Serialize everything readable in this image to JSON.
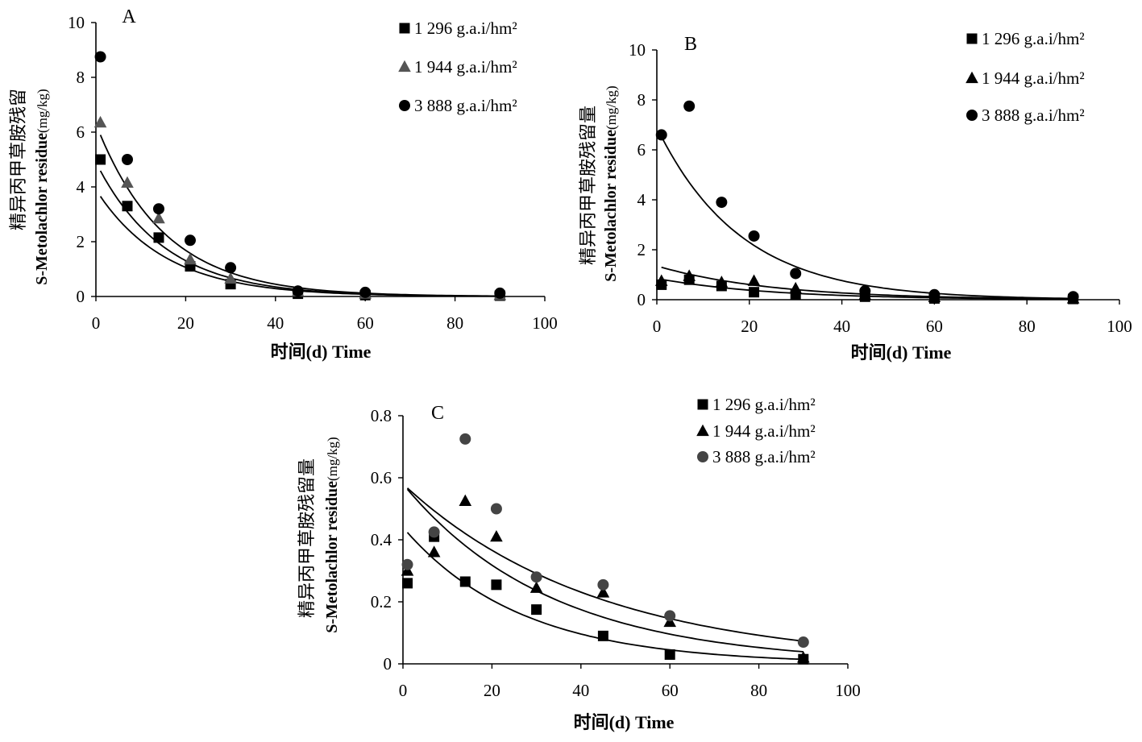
{
  "chart_data": [
    {
      "type": "scatter",
      "panel_label": "A",
      "xlabel": "时间(d) Time",
      "ylabel_cn": "精异丙甲草胺残留",
      "ylabel_en": "S-Metolachlor residue",
      "ylabel_unit": "(mg/kg)",
      "xlim": [
        0,
        100
      ],
      "ylim": [
        0,
        10
      ],
      "xticks": [
        "0",
        "20",
        "40",
        "60",
        "80",
        "100"
      ],
      "yticks": [
        "0",
        "2",
        "4",
        "6",
        "8",
        "10"
      ],
      "legend_position": "top-right",
      "series": [
        {
          "name": "1 296 g.a.i/hm²",
          "marker": "square",
          "color": "#000000",
          "x": [
            1,
            7,
            14,
            21,
            30,
            45,
            60,
            90
          ],
          "y": [
            5.0,
            3.3,
            2.15,
            1.1,
            0.45,
            0.1,
            0.05,
            0.03
          ],
          "fit": {
            "c0": 3.9,
            "k": 0.065
          }
        },
        {
          "name": "1 944 g.a.i/hm²",
          "marker": "triangle",
          "color": "#555555",
          "x": [
            1,
            7,
            14,
            21,
            30,
            45,
            60,
            90
          ],
          "y": [
            6.35,
            4.15,
            2.85,
            1.35,
            0.65,
            0.18,
            0.1,
            0.05
          ],
          "fit": {
            "c0": 4.9,
            "k": 0.066
          }
        },
        {
          "name": "3 888 g.a.i/hm²",
          "marker": "circle",
          "color": "#000000",
          "x": [
            1,
            7,
            14,
            21,
            30,
            45,
            60,
            90
          ],
          "y": [
            8.75,
            5.0,
            3.2,
            2.05,
            1.05,
            0.2,
            0.15,
            0.12
          ],
          "fit": {
            "c0": 6.3,
            "k": 0.066
          }
        }
      ]
    },
    {
      "type": "scatter",
      "panel_label": "B",
      "xlabel": "时间(d) Time",
      "ylabel_cn": "精异丙甲草胺残留量",
      "ylabel_en": "S-Metolachlor residue",
      "ylabel_unit": "(mg/kg)",
      "xlim": [
        0,
        100
      ],
      "ylim": [
        0,
        10
      ],
      "xticks": [
        "0",
        "20",
        "40",
        "60",
        "80",
        "100"
      ],
      "yticks": [
        "0",
        "2",
        "4",
        "6",
        "8",
        "10"
      ],
      "legend_position": "top-right",
      "series": [
        {
          "name": "1 296 g.a.i/hm²",
          "marker": "square",
          "color": "#000000",
          "x": [
            1,
            7,
            14,
            21,
            30,
            45,
            60,
            90
          ],
          "y": [
            0.6,
            0.8,
            0.55,
            0.3,
            0.2,
            0.12,
            0.05,
            0.03
          ],
          "fit": {
            "c0": 0.85,
            "k": 0.04
          }
        },
        {
          "name": "1 944 g.a.i/hm²",
          "marker": "triangle",
          "color": "#000000",
          "x": [
            1,
            7,
            14,
            21,
            30,
            45,
            60,
            90
          ],
          "y": [
            0.75,
            0.95,
            0.7,
            0.75,
            0.45,
            0.2,
            0.1,
            0.05
          ],
          "fit": {
            "c0": 1.35,
            "k": 0.04
          }
        },
        {
          "name": "3 888 g.a.i/hm²",
          "marker": "circle",
          "color": "#000000",
          "x": [
            1,
            7,
            14,
            21,
            30,
            45,
            60,
            90
          ],
          "y": [
            6.6,
            7.75,
            3.9,
            2.55,
            1.05,
            0.35,
            0.2,
            0.12
          ],
          "fit": {
            "c0": 6.9,
            "k": 0.055
          }
        }
      ]
    },
    {
      "type": "scatter",
      "panel_label": "C",
      "xlabel": "时间(d) Time",
      "ylabel_cn": "精异丙甲草胺残留量",
      "ylabel_en": "S-Metolachlor residue",
      "ylabel_unit": "(mg/kg)",
      "xlim": [
        0,
        100
      ],
      "ylim": [
        0,
        0.8
      ],
      "xticks": [
        "0",
        "20",
        "40",
        "60",
        "80",
        "100"
      ],
      "yticks": [
        "0",
        "0.2",
        "0.4",
        "0.6",
        "0.8"
      ],
      "legend_position": "top-right",
      "series": [
        {
          "name": "1 296 g.a.i/hm²",
          "marker": "square",
          "color": "#000000",
          "x": [
            1,
            7,
            14,
            21,
            30,
            45,
            60,
            90
          ],
          "y": [
            0.26,
            0.41,
            0.265,
            0.255,
            0.175,
            0.09,
            0.03,
            0.015
          ],
          "fit": {
            "c0": 0.44,
            "k": 0.038
          }
        },
        {
          "name": "1 944 g.a.i/hm²",
          "marker": "triangle",
          "color": "#000000",
          "x": [
            1,
            7,
            14,
            21,
            30,
            45,
            60,
            90
          ],
          "y": [
            0.3,
            0.36,
            0.525,
            0.41,
            0.245,
            0.23,
            0.135,
            0.02
          ],
          "fit": {
            "c0": 0.58,
            "k": 0.03
          }
        },
        {
          "name": "3 888 g.a.i/hm²",
          "marker": "circle",
          "color": "#444444",
          "x": [
            1,
            7,
            14,
            21,
            30,
            45,
            60,
            90
          ],
          "y": [
            0.32,
            0.425,
            0.725,
            0.5,
            0.28,
            0.255,
            0.155,
            0.07
          ],
          "fit": {
            "c0": 0.58,
            "k": 0.023
          }
        }
      ]
    }
  ]
}
